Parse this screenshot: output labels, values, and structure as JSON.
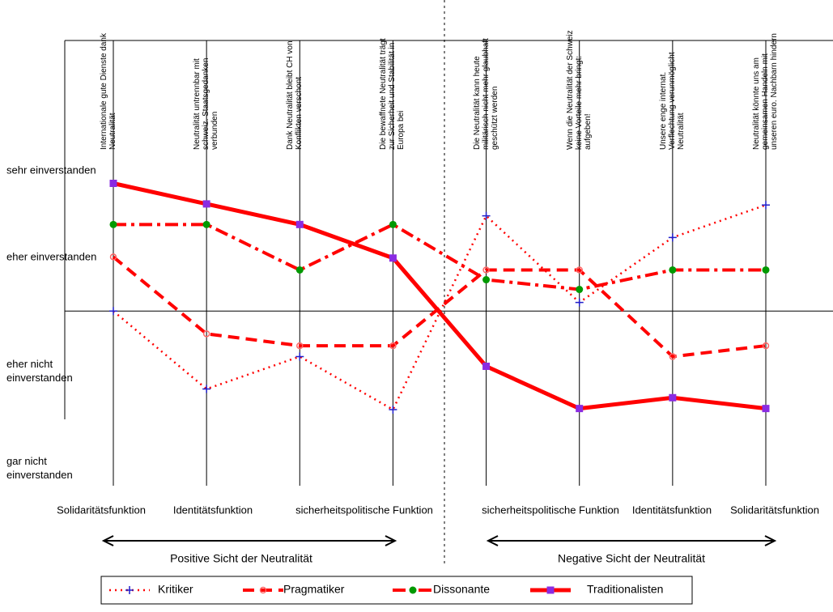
{
  "chart_data": {
    "type": "line",
    "categories": [
      "Internationale gute Dienste dank Neutralität",
      "Neutralität untrennbar mit schweiz. Staatsgedanken verbunden",
      "Dank Neutralität bleibt CH von Konflikten verschont",
      "Die bewaffnete Neutralität trägt zur Sicherheit und Stabilität in Europa bei",
      "Die Neutralität kann heute militärisch nicht mehr glaubhaft geschützt werden",
      "Wenn die Neutralität der Schweiz keine Vorteile mehr bringt: aufgeben!",
      "Unsere enge internat. Verflechtung verunmöglicht Neutralität",
      "Neutralität könnte uns am gemeinsamen Handeln mit unseren euro. Nachbarn hindern"
    ],
    "functions": [
      "Solidaritätsfunktion",
      "Identitätsfunktion",
      "sicherheitspolitische Funktion",
      "sicherheitspolitische Funktion",
      "Identitätsfunktion",
      "Solidaritätsfunktion"
    ],
    "groups": [
      "Positive Sicht der Neutralität",
      "Negative Sicht der Neutralität"
    ],
    "ylim": [
      -1,
      2.5
    ],
    "yticks": [
      {
        "value": 1.3,
        "label": "sehr einverstanden"
      },
      {
        "value": 0.5,
        "label": "eher einverstanden"
      },
      {
        "value": -0.55,
        "label": "eher nicht einverstanden"
      },
      {
        "value": -1.45,
        "label": "gar nicht einverstanden"
      }
    ],
    "series": [
      {
        "name": "Kritiker",
        "color": "#ff0000",
        "marker_color": "#1f1fcc",
        "style": "dotted",
        "values": [
          0.0,
          -0.72,
          -0.42,
          -0.91,
          0.88,
          0.08,
          0.68,
          0.98
        ]
      },
      {
        "name": "Pragmatiker",
        "color": "#ff0000",
        "marker_color": "#ff6666",
        "style": "dashed",
        "values": [
          0.5,
          -0.21,
          -0.32,
          -0.32,
          0.38,
          0.38,
          -0.42,
          -0.32
        ]
      },
      {
        "name": "Dissonante",
        "color": "#ff0000",
        "marker_color": "#009900",
        "style": "dashdot",
        "values": [
          0.8,
          0.8,
          0.38,
          0.8,
          0.29,
          0.2,
          0.38,
          0.38
        ]
      },
      {
        "name": "Traditionalisten",
        "color": "#ff0000",
        "marker_color": "#8a2be2",
        "style": "solid",
        "values": [
          1.18,
          0.99,
          0.8,
          0.49,
          -0.51,
          -0.9,
          -0.8,
          -0.9
        ]
      }
    ]
  }
}
